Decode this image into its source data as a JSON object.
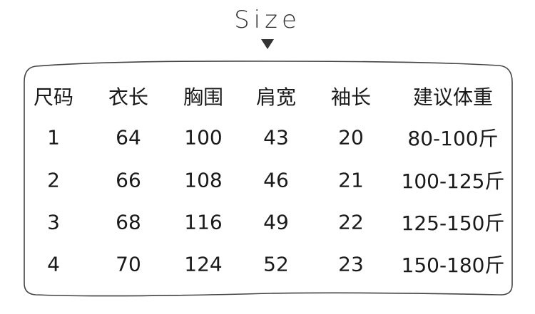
{
  "title": "Size",
  "table": {
    "headers": [
      "尺码",
      "衣长",
      "胸围",
      "肩宽",
      "袖长",
      "建议体重"
    ],
    "rows": [
      [
        "1",
        "64",
        "100",
        "43",
        "20",
        "80-100斤"
      ],
      [
        "2",
        "66",
        "108",
        "46",
        "21",
        "100-125斤"
      ],
      [
        "3",
        "68",
        "116",
        "49",
        "22",
        "125-150斤"
      ],
      [
        "4",
        "70",
        "124",
        "52",
        "23",
        "150-180斤"
      ]
    ]
  },
  "colors": {
    "text": "#1a1a1a",
    "border": "#444444"
  }
}
